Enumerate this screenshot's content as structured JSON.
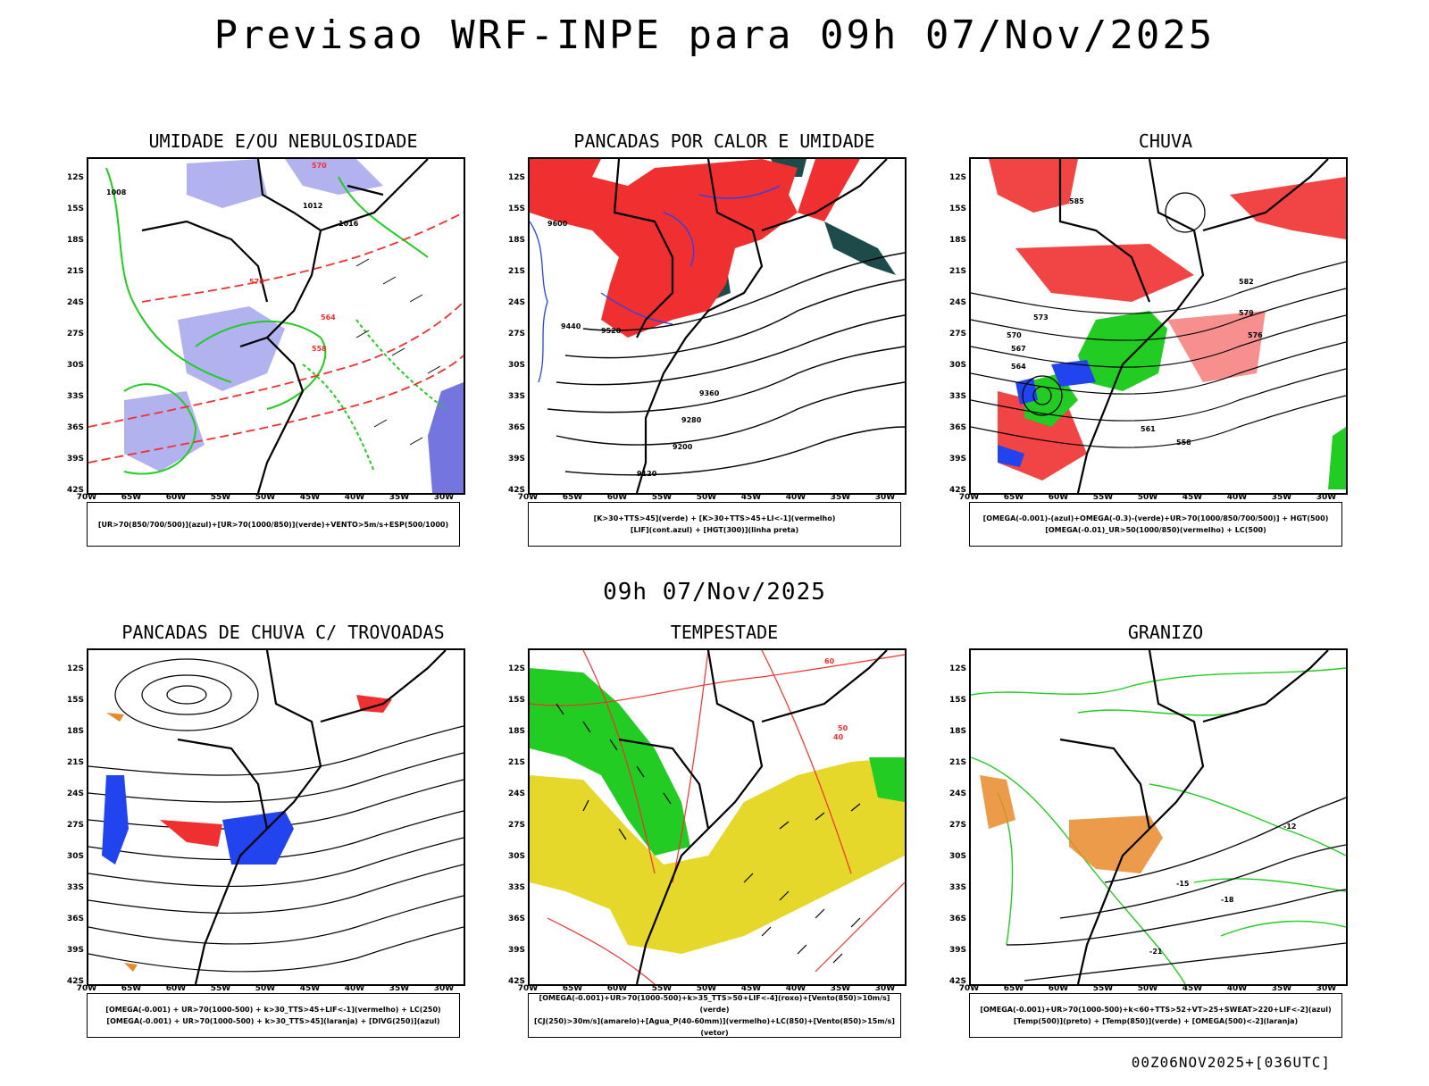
{
  "header": {
    "title": "Previsao WRF-INPE  para 09h 07/Nov/2025"
  },
  "middle": {
    "subtitle": "09h 07/Nov/2025"
  },
  "footer": {
    "run": "00Z06NOV2025+[036UTC]"
  },
  "axes": {
    "lat_labels": [
      "12S",
      "15S",
      "18S",
      "21S",
      "24S",
      "27S",
      "30S",
      "33S",
      "36S",
      "39S",
      "42S"
    ],
    "lon_labels": [
      "70W",
      "65W",
      "60W",
      "55W",
      "50W",
      "45W",
      "40W",
      "35W",
      "30W"
    ]
  },
  "colors": {
    "red": "#f03030",
    "green": "#22cc22",
    "blue": "#2244ee",
    "lavender": "#aaaaee",
    "darkteal": "#1e4a4a",
    "yellow": "#e6d82a",
    "orange": "#e88a2a"
  },
  "panels": [
    {
      "title": "UMIDADE E/OU NEBULOSIDADE",
      "legend": [
        "[UR>70(850/700/500)](azul)+[UR>70(1000/850)](verde)+VENTO>5m/s+ESP(500/1000)"
      ],
      "contour_labels": [
        "1008",
        "1012",
        "1016",
        "570",
        "576",
        "564",
        "558"
      ]
    },
    {
      "title": "PANCADAS POR CALOR E UMIDADE",
      "legend": [
        "[K>30+TTS>45](verde) + [K>30+TTS>45+LI<-1](vermelho)",
        "[LIF](cont.azul) + [HGT(300)](linha preta)"
      ],
      "contour_labels": [
        "9600",
        "9520",
        "9440",
        "9360",
        "9280",
        "9200",
        "9120"
      ]
    },
    {
      "title": "CHUVA",
      "legend": [
        "[OMEGA(-0.001)-(azul)+OMEGA(-0.3)-(verde)+UR>70(1000/850/700/500)] + HGT(500)",
        "[OMEGA(-0.01)_UR>50(1000/850)(vermelho) + LC(500)"
      ],
      "contour_labels": [
        "585",
        "582",
        "579",
        "576",
        "573",
        "570",
        "567",
        "564",
        "561",
        "558"
      ]
    },
    {
      "title": "PANCADAS DE CHUVA C/ TROVOADAS",
      "legend": [
        "[OMEGA(-0.001) + UR>70(1000-500) + k>30_TTS>45+LIF<-1](vermelho) + LC(250)",
        "[OMEGA(-0.001) + UR>70(1000-500) + k>30_TTS>45](laranja) + [DIVG(250)](azul)"
      ],
      "contour_labels": []
    },
    {
      "title": "TEMPESTADE",
      "legend": [
        "[OMEGA(-0.001)+UR>70(1000-500)+k>35_TTS>50+LIF<-4](roxo)+[Vento(850)>10m/s](verde)",
        "[CJ(250)>30m/s](amarelo)+[Agua_P(40-60mm)](vermelho)+LC(850)+[Vento(850)>15m/s](vetor)"
      ],
      "contour_labels": [
        "40",
        "50",
        "60"
      ]
    },
    {
      "title": "GRANIZO",
      "legend": [
        "[OMEGA(-0.001)+UR>70(1000-500)+k<60+TTS>52+VT>25+SWEAT>220+LIF<-2](azul)",
        "[Temp(500)](preto) + [Temp(850)](verde) + [OMEGA(500)<-2](laranja)"
      ],
      "contour_labels": [
        "-12",
        "-15",
        "-18",
        "-21"
      ]
    }
  ]
}
